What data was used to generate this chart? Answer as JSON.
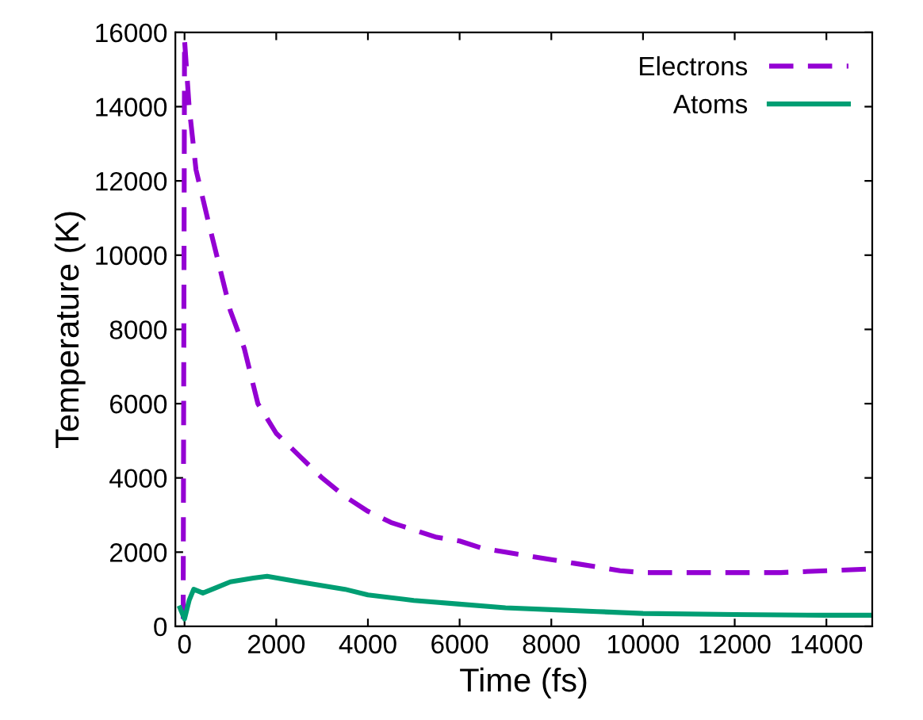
{
  "chart_data": {
    "type": "line",
    "xlabel": "Time (fs)",
    "ylabel": "Temperature (K)",
    "xlim": [
      -200,
      15000
    ],
    "ylim": [
      0,
      16000
    ],
    "xticks": [
      0,
      2000,
      4000,
      6000,
      8000,
      10000,
      12000,
      14000
    ],
    "yticks": [
      0,
      2000,
      4000,
      6000,
      8000,
      10000,
      12000,
      14000,
      16000
    ],
    "grid": false,
    "legend": "top right",
    "series": [
      {
        "name": "Electrons",
        "color": "#9400d3",
        "line_style": "dashed",
        "x": [
          -30,
          0,
          100,
          250,
          500,
          800,
          1000,
          1300,
          1600,
          2000,
          2500,
          3000,
          3500,
          4000,
          4500,
          5000,
          5500,
          6000,
          6500,
          7000,
          7500,
          8000,
          8500,
          9000,
          9500,
          10000,
          11000,
          12000,
          13000,
          14000,
          15000
        ],
        "values": [
          200,
          15800,
          14000,
          12300,
          11000,
          9500,
          8500,
          7500,
          6000,
          5200,
          4600,
          4000,
          3500,
          3100,
          2800,
          2600,
          2400,
          2300,
          2100,
          2000,
          1900,
          1800,
          1700,
          1600,
          1500,
          1450,
          1450,
          1450,
          1450,
          1500,
          1550
        ]
      },
      {
        "name": "Atoms",
        "color": "#009e73",
        "line_style": "solid",
        "x": [
          -100,
          0,
          100,
          200,
          400,
          700,
          1000,
          1500,
          1800,
          2500,
          3000,
          3500,
          4000,
          5000,
          6000,
          7000,
          8000,
          9000,
          10000,
          12000,
          14000,
          15000
        ],
        "values": [
          500,
          200,
          700,
          1000,
          900,
          1050,
          1200,
          1300,
          1350,
          1200,
          1100,
          1000,
          850,
          700,
          600,
          500,
          450,
          400,
          350,
          320,
          300,
          300
        ]
      }
    ]
  }
}
